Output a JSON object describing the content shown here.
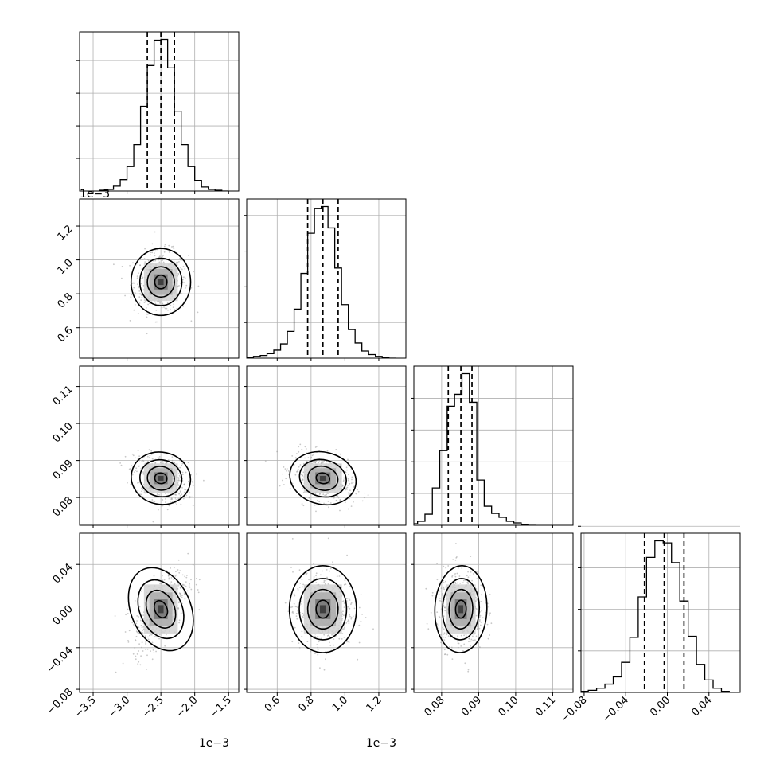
{
  "chart_data": {
    "type": "corner",
    "parameters": 4,
    "params": [
      {
        "axis_ticks": [
          -3.5,
          -3.0,
          -2.5,
          -2.0,
          -1.5
        ],
        "tick_labels": [
          "−3.5",
          "−3.0",
          "−2.5",
          "−2.0",
          "−1.5"
        ],
        "range": [
          -3.7,
          -1.35
        ],
        "offset_label": "1e−3",
        "quantiles": [
          -2.7,
          -2.5,
          -2.3
        ],
        "hist_bins": [
          -3.35,
          -3.25,
          -3.15,
          -3.05,
          -2.95,
          -2.85,
          -2.75,
          -2.65,
          -2.55,
          -2.45,
          -2.35,
          -2.25,
          -2.15,
          -2.05,
          -1.95,
          -1.85,
          -1.75,
          -1.65,
          -1.55
        ],
        "hist_counts": [
          1,
          2,
          6,
          14,
          30,
          57,
          104,
          154,
          185,
          186,
          151,
          98,
          57,
          30,
          13,
          5,
          2,
          1,
          0
        ],
        "mean": -2.5,
        "sd": 0.2
      },
      {
        "axis_ticks": [
          0.6,
          0.8,
          1.0,
          1.2
        ],
        "tick_labels": [
          "0.6",
          "0.8",
          "1.0",
          "1.2"
        ],
        "range": [
          0.42,
          1.36
        ],
        "offset_label": "1e−3",
        "quantiles": [
          0.78,
          0.87,
          0.96
        ],
        "hist_bins": [
          0.44,
          0.48,
          0.52,
          0.56,
          0.6,
          0.64,
          0.68,
          0.72,
          0.76,
          0.8,
          0.84,
          0.88,
          0.92,
          0.96,
          1.0,
          1.04,
          1.08,
          1.12,
          1.16,
          1.2,
          1.24,
          1.28
        ],
        "hist_counts": [
          1,
          2,
          3,
          5,
          9,
          16,
          30,
          55,
          95,
          140,
          168,
          170,
          146,
          101,
          60,
          32,
          17,
          8,
          4,
          2,
          1,
          0
        ],
        "mean": 0.87,
        "sd": 0.09
      },
      {
        "axis_ticks": [
          0.08,
          0.09,
          0.1,
          0.11
        ],
        "tick_labels": [
          "0.08",
          "0.09",
          "0.10",
          "0.11"
        ],
        "range": [
          0.0725,
          0.1155
        ],
        "offset_label": "",
        "quantiles": [
          0.0818,
          0.0852,
          0.0882
        ],
        "hist_bins": [
          0.0725,
          0.0745,
          0.0765,
          0.0785,
          0.0805,
          0.0825,
          0.0845,
          0.0865,
          0.0885,
          0.0905,
          0.0925,
          0.0945,
          0.0965,
          0.0985,
          0.1005,
          0.1025,
          0.1045
        ],
        "hist_counts": [
          2,
          5,
          14,
          47,
          94,
          150,
          165,
          191,
          155,
          57,
          24,
          15,
          10,
          5,
          3,
          1,
          0
        ],
        "mean": 0.0852,
        "sd": 0.0032
      },
      {
        "axis_ticks": [
          -0.08,
          -0.04,
          0.0,
          0.04
        ],
        "tick_labels": [
          "−0.08",
          "−0.04",
          "0.00",
          "0.04"
        ],
        "range": [
          -0.083,
          0.07
        ],
        "offset_label": "",
        "quantiles": [
          -0.022,
          -0.003,
          0.016
        ],
        "hist_bins": [
          -0.08,
          -0.072,
          -0.064,
          -0.056,
          -0.048,
          -0.04,
          -0.032,
          -0.024,
          -0.016,
          -0.008,
          0.0,
          0.008,
          0.016,
          0.024,
          0.032,
          0.04,
          0.048,
          0.056
        ],
        "hist_counts": [
          1,
          2,
          4,
          8,
          15,
          29,
          53,
          92,
          130,
          146,
          144,
          125,
          88,
          54,
          27,
          12,
          4,
          1
        ],
        "mean": -0.003,
        "sd": 0.019
      }
    ],
    "correlations": [
      [
        1.0,
        0.0,
        -0.3,
        0.6
      ],
      [
        0.0,
        1.0,
        -0.35,
        0.0
      ],
      [
        -0.3,
        -0.35,
        1.0,
        -0.05
      ],
      [
        0.6,
        0.0,
        -0.05,
        1.0
      ]
    ],
    "contour_levels": 4,
    "grid": true,
    "colors": {
      "line": "#000000",
      "grid": "#b0b0b0",
      "scatter": "#9a9a9a"
    }
  }
}
